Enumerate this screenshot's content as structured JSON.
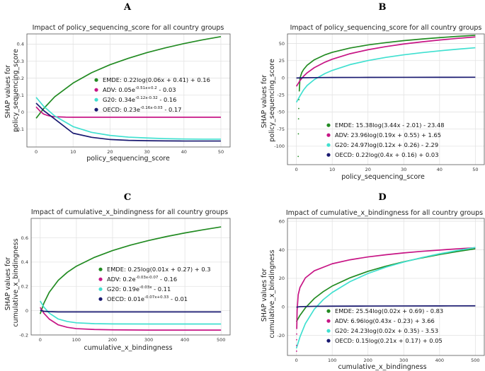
{
  "figure": {
    "width": 685,
    "height": 525
  },
  "chart_data": [
    {
      "id": "A",
      "letter": "A",
      "type": "line",
      "title": "Impact of policy_sequencing_score for all country groups",
      "xlabel": "policy_sequencing_score",
      "ylabel": [
        "SHAP values for",
        "policy_sequencing_score"
      ],
      "xlim": [
        -2.5,
        52.5
      ],
      "ylim": [
        -0.205,
        0.46
      ],
      "xticks": [
        0,
        10,
        20,
        30,
        40,
        50
      ],
      "yticks": [
        -0.1,
        0,
        0.1,
        0.2,
        0.3,
        0.4
      ],
      "legend_position": "center-right",
      "series": [
        {
          "name": "EMDE",
          "legend": "EMDE: 0.22log(0.06x + 0.41) + 0.16",
          "color": "#228b22",
          "x": [
            0,
            2,
            5,
            10,
            15,
            20,
            25,
            30,
            35,
            40,
            45,
            50
          ],
          "y": [
            -0.036,
            0.02,
            0.09,
            0.171,
            0.232,
            0.279,
            0.317,
            0.35,
            0.378,
            0.403,
            0.425,
            0.444
          ]
        },
        {
          "name": "ADV",
          "legend": "ADV: 0.05e^{-0.51x+0.2} - 0.03",
          "color": "#c71585",
          "x": [
            0,
            1,
            2,
            3,
            4,
            5,
            6,
            8,
            10,
            20,
            30,
            40,
            50
          ],
          "y": [
            0.031,
            0.007,
            -0.011,
            -0.019,
            -0.024,
            -0.027,
            -0.028,
            -0.0295,
            -0.03,
            -0.03,
            -0.03,
            -0.03,
            -0.03
          ]
        },
        {
          "name": "G20",
          "legend": "G20: 0.34e^{-0.12x-0.32} - 0.16",
          "color": "#40e0d0",
          "x": [
            0,
            2,
            5,
            10,
            15,
            20,
            25,
            30,
            35,
            40,
            45,
            50
          ],
          "y": [
            0.087,
            0.035,
            -0.022,
            -0.085,
            -0.119,
            -0.137,
            -0.147,
            -0.152,
            -0.156,
            -0.158,
            -0.159,
            -0.159
          ]
        },
        {
          "name": "OECD",
          "legend": "OECD: 0.23e^{-0.16x-0.03} - 0.17",
          "color": "#191970",
          "x": [
            0,
            2,
            5,
            10,
            15,
            20,
            25,
            30,
            35,
            40,
            45,
            50
          ],
          "y": [
            0.053,
            0.01,
            -0.04,
            -0.124,
            -0.148,
            -0.161,
            -0.166,
            -0.168,
            -0.169,
            -0.17,
            -0.17,
            -0.17
          ]
        }
      ]
    },
    {
      "id": "B",
      "letter": "B",
      "type": "line",
      "title": "Impact of policy_sequencing_score for all country groups",
      "xlabel": "policy_sequencing_score",
      "ylabel": [
        "SHAP values for",
        "policy_sequencing_score"
      ],
      "xlim": [
        -2.5,
        52.5
      ],
      "ylim": [
        -127,
        64
      ],
      "xticks": [
        0,
        10,
        20,
        30,
        40,
        50
      ],
      "yticks": [
        -100,
        -75,
        -50,
        -25,
        0,
        25,
        50
      ],
      "legend_position": "lower-right",
      "series": [
        {
          "name": "EMDE",
          "legend": "EMDE: 15.38log(3.44x - 2.01) - 23.48",
          "color": "#228b22",
          "x": [
            0.8,
            1,
            1.5,
            2,
            3,
            5,
            8,
            10,
            15,
            20,
            25,
            30,
            35,
            40,
            45,
            50
          ],
          "y": [
            -20,
            -0.5,
            7.5,
            12,
            18.3,
            26.2,
            33.5,
            37.1,
            43.4,
            47.9,
            51.3,
            54.2,
            56.5,
            58.6,
            60.4,
            62.0
          ]
        },
        {
          "name": "ADV",
          "legend": "ADV: 23.96log(0.19x + 0.55) + 1.65",
          "color": "#c71585",
          "x": [
            0,
            1,
            2,
            3,
            5,
            8,
            10,
            15,
            20,
            25,
            30,
            35,
            40,
            45,
            50
          ],
          "y": [
            -12.6,
            -4.2,
            2.2,
            7.2,
            14.7,
            22.8,
            27.0,
            35.1,
            40.9,
            45.5,
            49.3,
            52.4,
            55.1,
            57.5,
            59.6
          ]
        },
        {
          "name": "G20",
          "legend": "G20: 24.97log(0.12x + 0.26) - 2.29",
          "color": "#40e0d0",
          "x": [
            0,
            1,
            2,
            3,
            5,
            8,
            10,
            15,
            20,
            25,
            30,
            35,
            40,
            45,
            50
          ],
          "y": [
            -35.9,
            -26.5,
            -17.8,
            -11.3,
            -2.7,
            6.2,
            10.7,
            19.2,
            25.1,
            29.7,
            33.5,
            36.6,
            39.3,
            41.7,
            43.8
          ]
        },
        {
          "name": "OECD",
          "legend": "OECD: 0.22log(0.4x + 0.16) + 0.03",
          "color": "#191970",
          "x": [
            0,
            2,
            5,
            10,
            20,
            30,
            40,
            50
          ],
          "y": [
            -0.37,
            0.02,
            0.19,
            0.34,
            0.49,
            0.58,
            0.64,
            0.69
          ]
        }
      ],
      "scatter_dots": {
        "color": "#228b22",
        "x": [
          0.7,
          0.65,
          0.6,
          0.55,
          0.5
        ],
        "y": [
          -32,
          -45,
          -60,
          -82,
          -115
        ]
      }
    },
    {
      "id": "C",
      "letter": "C",
      "type": "line",
      "title": "Impact of cumulative_x_bindingness for all country groups",
      "xlabel": "cumulative_x_bindingness",
      "ylabel": [
        "SHAP values for",
        "cumulative_x_bindingness"
      ],
      "xlim": [
        -25,
        525
      ],
      "ylim": [
        -0.2,
        0.76
      ],
      "xticks": [
        0,
        100,
        200,
        300,
        400,
        500
      ],
      "yticks": [
        -0.2,
        0,
        0.2,
        0.4,
        0.6
      ],
      "legend_position": "center-right",
      "series": [
        {
          "name": "EMDE",
          "legend": "EMDE: 0.25log(0.01x + 0.27) + 0.3",
          "color": "#228b22",
          "x": [
            0,
            10,
            25,
            50,
            75,
            100,
            150,
            200,
            250,
            300,
            350,
            400,
            450,
            500
          ],
          "y": [
            -0.027,
            0.06,
            0.151,
            0.25,
            0.316,
            0.366,
            0.439,
            0.495,
            0.54,
            0.578,
            0.611,
            0.64,
            0.666,
            0.69
          ]
        },
        {
          "name": "ADV",
          "legend": "ADV: 0.2e^{-0.03x-0.07} - 0.16",
          "color": "#c71585",
          "x": [
            0,
            10,
            25,
            50,
            75,
            100,
            150,
            200,
            300,
            400,
            500
          ],
          "y": [
            0.027,
            -0.021,
            -0.069,
            -0.117,
            -0.137,
            -0.148,
            -0.155,
            -0.158,
            -0.16,
            -0.16,
            -0.16
          ]
        },
        {
          "name": "G20",
          "legend": "G20: 0.19e^{-0.03x} - 0.11",
          "color": "#40e0d0",
          "x": [
            0,
            10,
            25,
            50,
            75,
            100,
            150,
            200,
            300,
            400,
            500
          ],
          "y": [
            0.08,
            0.03,
            -0.02,
            -0.069,
            -0.089,
            -0.1,
            -0.107,
            -0.109,
            -0.11,
            -0.11,
            -0.11
          ]
        },
        {
          "name": "OECD",
          "legend": "OECD: 0.01e^{-0.07x+0.33} - 0.01",
          "color": "#191970",
          "x": [
            0,
            10,
            25,
            50,
            100,
            200,
            300,
            400,
            500
          ],
          "y": [
            0.004,
            -0.005,
            -0.008,
            -0.01,
            -0.01,
            -0.01,
            -0.01,
            -0.01,
            -0.01
          ]
        }
      ]
    },
    {
      "id": "D",
      "letter": "D",
      "type": "line",
      "title": "Impact of cumulative_x_bindingness for all country groups",
      "xlabel": "cumulative_x_bindingness",
      "ylabel": [
        "SHAP values for",
        "cumulative_x_bindingness"
      ],
      "xlim": [
        -25,
        525
      ],
      "ylim": [
        -34,
        62
      ],
      "xticks": [
        0,
        100,
        200,
        300,
        400,
        500
      ],
      "yticks": [
        -20,
        0,
        20,
        40,
        60
      ],
      "legend_position": "lower-right",
      "series": [
        {
          "name": "EMDE",
          "legend": "EMDE: 25.54log(0.02x + 0.69) - 0.83",
          "color": "#228b22",
          "x": [
            0,
            10,
            25,
            50,
            75,
            100,
            150,
            200,
            250,
            300,
            350,
            400,
            450,
            500
          ],
          "y": [
            -10.3,
            -5.9,
            -0.7,
            5.9,
            10.7,
            14.6,
            20.4,
            24.9,
            28.5,
            31.6,
            34.3,
            36.7,
            38.8,
            40.7
          ]
        },
        {
          "name": "ADV",
          "legend": "ADV: 6.96log(0.43x - 0.23) + 3.66",
          "color": "#c71585",
          "x": [
            1,
            2,
            5,
            10,
            25,
            50,
            100,
            150,
            200,
            250,
            300,
            350,
            400,
            450,
            500
          ],
          "y": [
            -15.5,
            -2.5,
            8.5,
            13.6,
            20.3,
            25.3,
            30.2,
            33.0,
            35.0,
            36.5,
            37.8,
            38.9,
            39.8,
            40.7,
            41.4
          ]
        },
        {
          "name": "G20",
          "legend": "G20: 24.23log(0.02x + 0.35) - 3.53",
          "color": "#40e0d0",
          "x": [
            0,
            10,
            25,
            50,
            75,
            100,
            150,
            200,
            250,
            300,
            350,
            400,
            450,
            500
          ],
          "y": [
            -29.0,
            -21.0,
            -11.7,
            -1.6,
            5.1,
            10.1,
            17.7,
            23.4,
            27.8,
            31.4,
            34.5,
            37.2,
            39.5,
            41.6
          ]
        },
        {
          "name": "OECD",
          "legend": "OECD: 0.15log(0.21x + 0.17) + 0.05",
          "color": "#191970",
          "x": [
            0,
            10,
            50,
            100,
            200,
            300,
            400,
            500
          ],
          "y": [
            -0.2,
            0.17,
            0.41,
            0.51,
            0.61,
            0.67,
            0.72,
            0.75
          ]
        }
      ],
      "scatter_dots": {
        "color": "#c71585",
        "x": [
          0.8,
          0.7,
          0.6,
          0.5
        ],
        "y": [
          -19,
          -23,
          -27,
          -31
        ]
      }
    }
  ]
}
